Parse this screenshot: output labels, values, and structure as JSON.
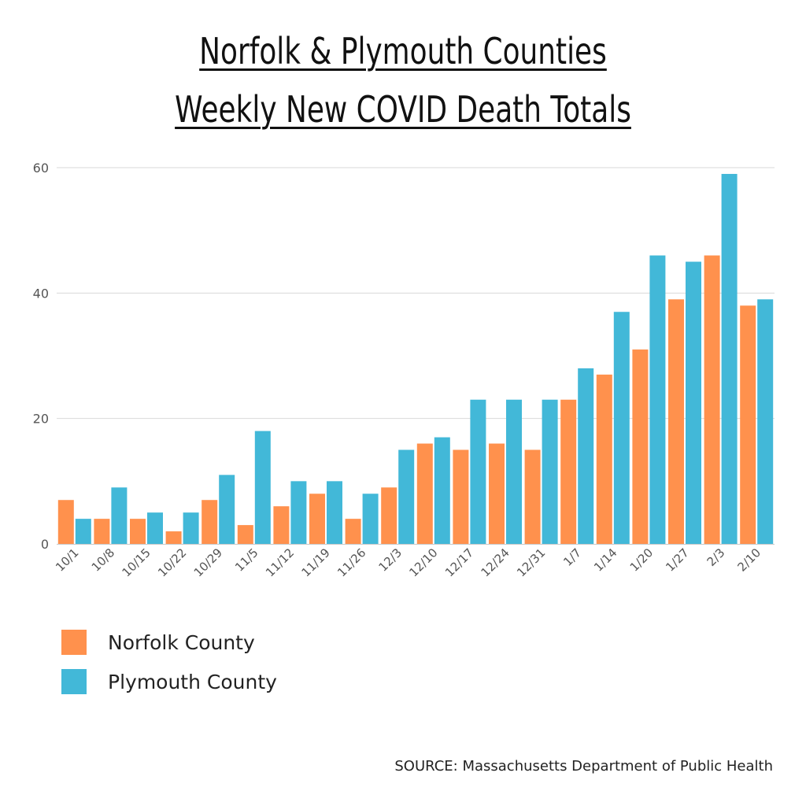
{
  "chart_data": {
    "type": "bar",
    "title": [
      "Norfolk & Plymouth Counties",
      "Weekly New COVID Death Totals"
    ],
    "xlabel": "",
    "ylabel": "",
    "ylim": [
      0,
      60
    ],
    "yticks": [
      0,
      20,
      40,
      60
    ],
    "grid": true,
    "legend_position": "bottom-left",
    "categories": [
      "10/1",
      "10/8",
      "10/15",
      "10/22",
      "10/29",
      "11/5",
      "11/12",
      "11/19",
      "11/26",
      "12/3",
      "12/10",
      "12/17",
      "12/24",
      "12/31",
      "1/7",
      "1/14",
      "1/20",
      "1/27",
      "2/3",
      "2/10"
    ],
    "series": [
      {
        "name": "Norfolk County",
        "color": "#FF914D",
        "values": [
          7,
          4,
          4,
          2,
          7,
          3,
          6,
          8,
          4,
          9,
          16,
          15,
          16,
          15,
          23,
          27,
          31,
          39,
          46,
          38
        ]
      },
      {
        "name": "Plymouth County",
        "color": "#42B8D8",
        "values": [
          4,
          9,
          5,
          5,
          11,
          18,
          10,
          10,
          8,
          15,
          17,
          23,
          23,
          23,
          28,
          37,
          46,
          45,
          59,
          39
        ]
      }
    ],
    "source": "SOURCE: Massachusetts Department of Public Health"
  },
  "colors": {
    "grid": "#D9D9D9",
    "axis": "#C8C8C8",
    "tick_text": "#555555"
  }
}
